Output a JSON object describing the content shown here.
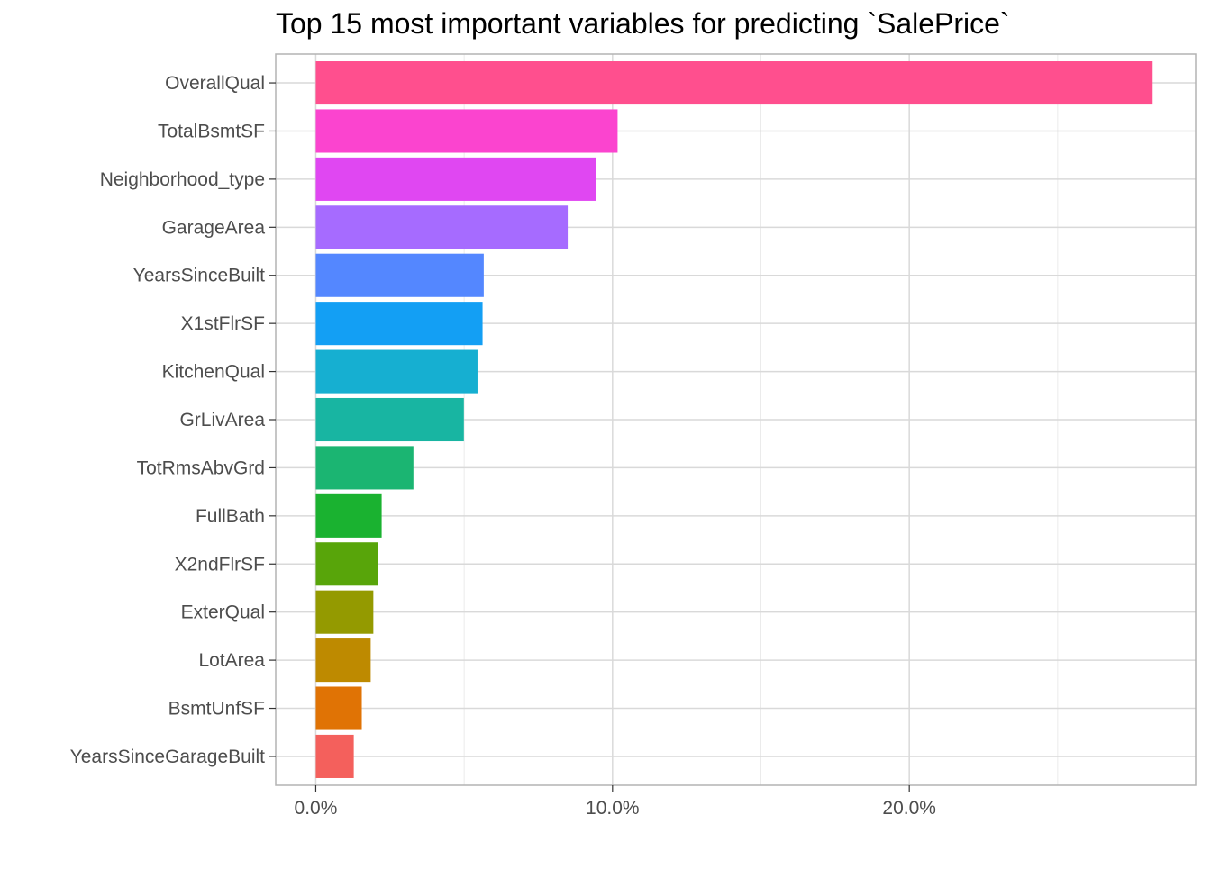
{
  "chart_data": {
    "type": "bar",
    "orientation": "horizontal",
    "title": "Top 15 most important variables for predicting `SalePrice`",
    "xlabel": "",
    "ylabel": "",
    "xlim": [
      -0.0135,
      0.2965
    ],
    "x_ticks": [
      0,
      0.1,
      0.2
    ],
    "x_tick_labels": [
      "0.0%",
      "10.0%",
      "20.0%"
    ],
    "x_minor_ticks": [
      0.05,
      0.15,
      0.25
    ],
    "grid": true,
    "legend": "none",
    "categories": [
      "OverallQual",
      "TotalBsmtSF",
      "Neighborhood_type",
      "GarageArea",
      "YearsSinceBuilt",
      "X1stFlrSF",
      "KitchenQual",
      "GrLivArea",
      "TotRmsAbvGrd",
      "FullBath",
      "X2ndFlrSF",
      "ExterQual",
      "LotArea",
      "BsmtUnfSF",
      "YearsSinceGarageBuilt"
    ],
    "values": [
      0.282,
      0.1017,
      0.0945,
      0.0849,
      0.0566,
      0.0562,
      0.0545,
      0.0499,
      0.0329,
      0.0222,
      0.0209,
      0.0194,
      0.0185,
      0.0155,
      0.0128
    ],
    "colors": [
      "#FF4F8E",
      "#FB44CF",
      "#E047F2",
      "#A66BFF",
      "#5487FF",
      "#139FF4",
      "#16AFD1",
      "#18B5A2",
      "#1BB572",
      "#1AB230",
      "#58A50A",
      "#949A00",
      "#BE8A00",
      "#E07305",
      "#F4605C"
    ]
  }
}
